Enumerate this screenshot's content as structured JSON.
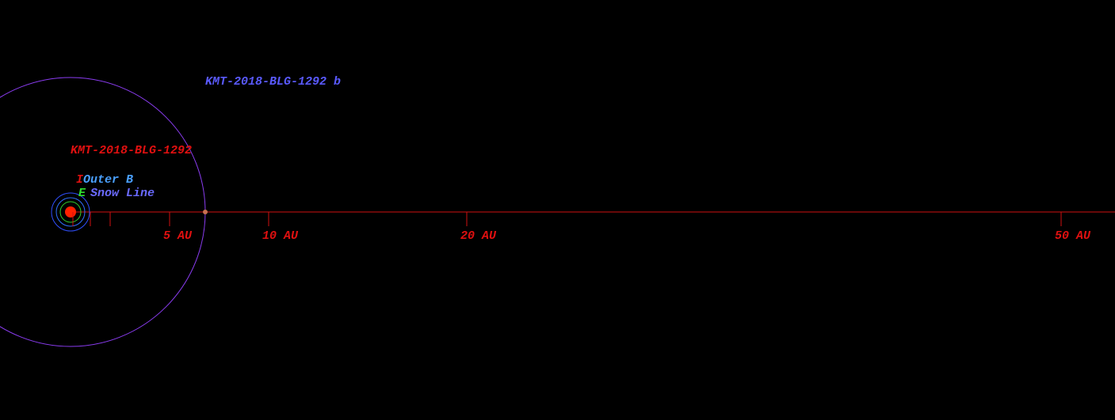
{
  "planet": {
    "label": "KMT-2018-BLG-1292 b"
  },
  "star": {
    "label": "KMT-2018-BLG-1292"
  },
  "zones": [
    {
      "marker": "I",
      "label": "Outer B"
    },
    {
      "marker": "E",
      "label": "Snow Line"
    }
  ],
  "scale": {
    "ticks": [
      {
        "value": 5,
        "label": "5 AU"
      },
      {
        "value": 10,
        "label": "10 AU"
      },
      {
        "value": 20,
        "label": "20 AU"
      },
      {
        "value": 50,
        "label": "50 AU"
      }
    ]
  }
}
